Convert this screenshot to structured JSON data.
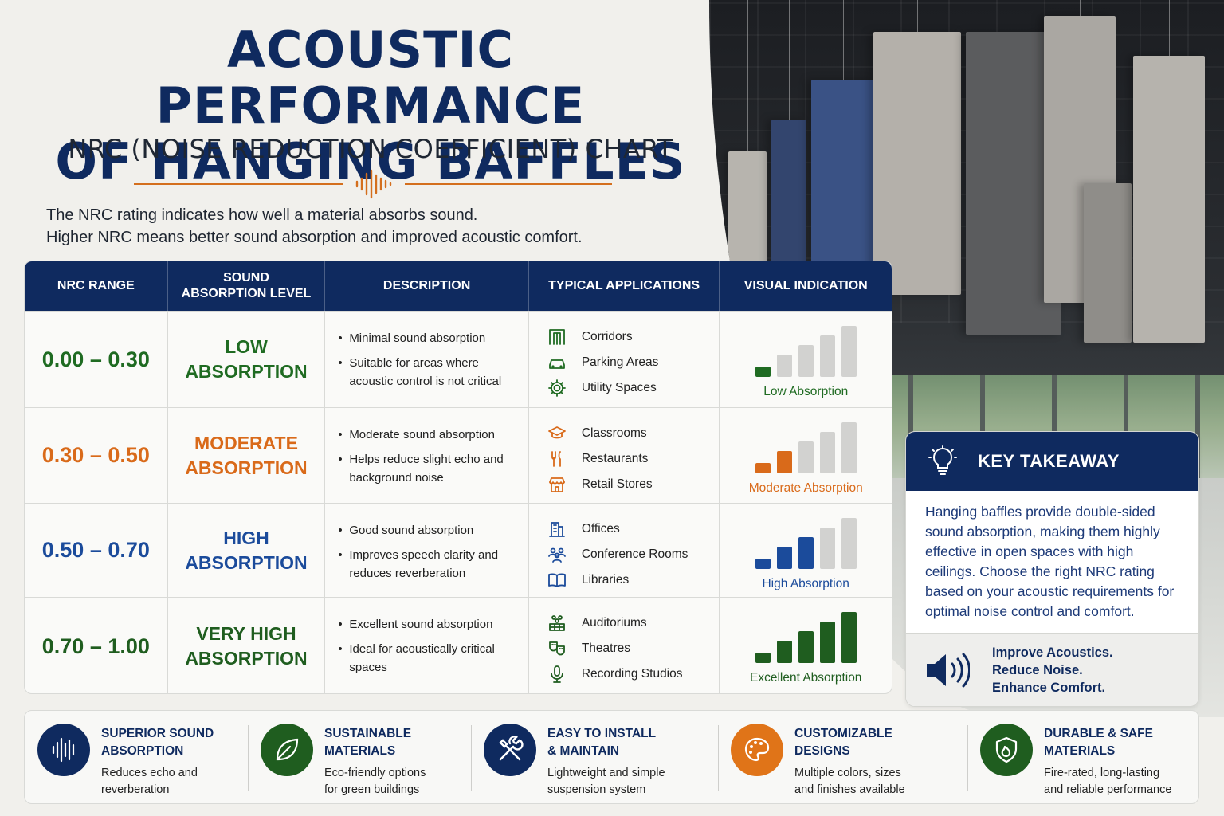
{
  "header": {
    "title_line1": "ACOUSTIC PERFORMANCE",
    "title_line2": "OF HANGING BAFFLES",
    "subtitle": "NRC (NOISE REDUCTION COEFFICIENT) CHART",
    "intro_line1": "The NRC rating indicates how well a material absorbs sound.",
    "intro_line2": "Higher NRC means better sound absorption and improved acoustic comfort."
  },
  "table": {
    "headers": [
      "NRC RANGE",
      "SOUND\nABSORPTION LEVEL",
      "DESCRIPTION",
      "TYPICAL APPLICATIONS",
      "VISUAL INDICATION"
    ],
    "rows": [
      {
        "range": "0.00 – 0.30",
        "level": "LOW\nABSORPTION",
        "color": "#1f6b22",
        "bars_filled": 1,
        "description": [
          "Minimal sound absorption",
          "Suitable for areas where acoustic control is not critical"
        ],
        "applications": [
          {
            "label": "Corridors",
            "icon": "corridor-icon"
          },
          {
            "label": "Parking Areas",
            "icon": "car-icon"
          },
          {
            "label": "Utility Spaces",
            "icon": "gear-icon"
          }
        ],
        "visual_label": "Low Absorption"
      },
      {
        "range": "0.30 – 0.50",
        "level": "MODERATE\nABSORPTION",
        "color": "#d96a1a",
        "bars_filled": 2,
        "description": [
          "Moderate sound absorption",
          "Helps reduce slight echo and background noise"
        ],
        "applications": [
          {
            "label": "Classrooms",
            "icon": "graduation-cap-icon"
          },
          {
            "label": "Restaurants",
            "icon": "utensils-icon"
          },
          {
            "label": "Retail Stores",
            "icon": "storefront-icon"
          }
        ],
        "visual_label": "Moderate Absorption"
      },
      {
        "range": "0.50 – 0.70",
        "level": "HIGH\nABSORPTION",
        "color": "#1b4b9b",
        "bars_filled": 3,
        "description": [
          "Good sound absorption",
          "Improves speech clarity and reduces reverberation"
        ],
        "applications": [
          {
            "label": "Offices",
            "icon": "office-building-icon"
          },
          {
            "label": "Conference Rooms",
            "icon": "people-icon"
          },
          {
            "label": "Libraries",
            "icon": "book-icon"
          }
        ],
        "visual_label": "High Absorption"
      },
      {
        "range": "0.70 – 1.00",
        "level": "VERY HIGH\nABSORPTION",
        "color": "#1f5d1f",
        "bars_filled": 5,
        "description": [
          "Excellent sound absorption",
          "Ideal for acoustically critical spaces"
        ],
        "applications": [
          {
            "label": "Auditoriums",
            "icon": "auditorium-icon"
          },
          {
            "label": "Theatres",
            "icon": "theatre-masks-icon"
          },
          {
            "label": "Recording Studios",
            "icon": "microphone-icon"
          }
        ],
        "visual_label": "Excellent Absorption"
      }
    ]
  },
  "key_takeaway": {
    "title": "KEY TAKEAWAY",
    "body": "Hanging baffles provide double-sided sound absorption, making them highly effective in open spaces with high ceilings. Choose the right NRC rating based on your acoustic requirements for optimal noise control and comfort.",
    "slogan_line1": "Improve Acoustics.",
    "slogan_line2": "Reduce Noise.",
    "slogan_line3": "Enhance Comfort."
  },
  "features": [
    {
      "title": "SUPERIOR SOUND\nABSORPTION",
      "desc": "Reduces echo and\nreverberation",
      "color": "#0f2a5f",
      "icon": "sound-wave-icon"
    },
    {
      "title": "SUSTAINABLE\nMATERIALS",
      "desc": "Eco-friendly options\nfor green buildings",
      "color": "#1f5d1f",
      "icon": "leaf-icon"
    },
    {
      "title": "EASY TO INSTALL\n& MAINTAIN",
      "desc": "Lightweight and simple\nsuspension system",
      "color": "#0f2a5f",
      "icon": "tools-icon"
    },
    {
      "title": "CUSTOMIZABLE\nDESIGNS",
      "desc": "Multiple colors, sizes\nand finishes available",
      "color": "#e07418",
      "icon": "palette-icon"
    },
    {
      "title": "DURABLE & SAFE\nMATERIALS",
      "desc": "Fire-rated, long-lasting\nand reliable performance",
      "color": "#1f5d1f",
      "icon": "fire-shield-icon"
    }
  ],
  "colors": {
    "navy": "#0f2a5f",
    "orange": "#d96a1a",
    "bar_inactive": "#d2d2d0"
  }
}
